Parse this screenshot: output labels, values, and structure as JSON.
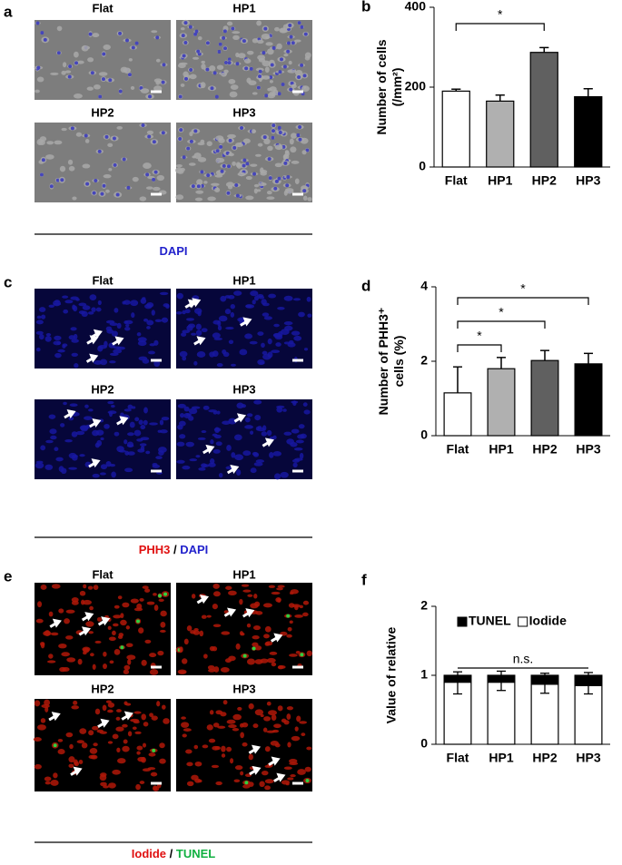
{
  "panels": [
    {
      "letter": "a",
      "labels": [
        "Flat",
        "HP1",
        "HP2",
        "HP3"
      ],
      "stain": [
        {
          "text": "DAPI",
          "color": "#2222cc"
        }
      ]
    },
    {
      "letter": "c",
      "labels": [
        "Flat",
        "HP1",
        "HP2",
        "HP3"
      ],
      "stain": [
        {
          "text": "PHH3",
          "color": "#e01010"
        },
        {
          "text": " / ",
          "color": "#000000"
        },
        {
          "text": "DAPI",
          "color": "#2222cc"
        }
      ]
    },
    {
      "letter": "e",
      "labels": [
        "Flat",
        "HP1",
        "HP2",
        "HP3"
      ],
      "stain": [
        {
          "text": "Iodide",
          "color": "#e01010"
        },
        {
          "text": " / ",
          "color": "#000000"
        },
        {
          "text": "TUNEL",
          "color": "#10b040"
        }
      ]
    }
  ],
  "chart_data": [
    {
      "type": "bar",
      "letter": "b",
      "ylabel": [
        "Number of cells",
        "(/mm²)"
      ],
      "categories": [
        "Flat",
        "HP1",
        "HP2",
        "HP3"
      ],
      "values": [
        190,
        165,
        287,
        176
      ],
      "errors": [
        5,
        15,
        12,
        20
      ],
      "colors": [
        "#ffffff",
        "#b0b0b0",
        "#606060",
        "#000000"
      ],
      "ylim": [
        0,
        400
      ],
      "yticks": [
        0,
        200,
        400
      ],
      "significance": [
        {
          "from": 0,
          "to": 2,
          "label": "*"
        }
      ]
    },
    {
      "type": "bar",
      "letter": "d",
      "ylabel": [
        "Number of PHH3⁺",
        "cells (%)"
      ],
      "categories": [
        "Flat",
        "HP1",
        "HP2",
        "HP3"
      ],
      "values": [
        1.15,
        1.8,
        2.02,
        1.93
      ],
      "errors": [
        0.7,
        0.3,
        0.27,
        0.28
      ],
      "colors": [
        "#ffffff",
        "#b0b0b0",
        "#606060",
        "#000000"
      ],
      "ylim": [
        0,
        4
      ],
      "yticks": [
        0,
        2,
        4
      ],
      "significance": [
        {
          "from": 0,
          "to": 1,
          "label": "*"
        },
        {
          "from": 0,
          "to": 2,
          "label": "*"
        },
        {
          "from": 0,
          "to": 3,
          "label": "*"
        }
      ]
    },
    {
      "type": "stacked_bar",
      "letter": "f",
      "ylabel": [
        "Value of relative"
      ],
      "categories": [
        "Flat",
        "HP1",
        "HP2",
        "HP3"
      ],
      "series": [
        {
          "name": "Iodide",
          "color": "#ffffff",
          "values": [
            0.9,
            0.9,
            0.87,
            0.85
          ],
          "errors": [
            0.17,
            0.12,
            0.13,
            0.12
          ]
        },
        {
          "name": "TUNEL",
          "color": "#000000",
          "values": [
            0.1,
            0.1,
            0.13,
            0.15
          ],
          "errors": [
            0.05,
            0.06,
            0.03,
            0.04
          ]
        }
      ],
      "legend": "top",
      "ylim": [
        0,
        2
      ],
      "yticks": [
        0,
        1,
        2
      ],
      "significance": [
        {
          "from": 0,
          "to": 3,
          "label": "n.s."
        }
      ]
    }
  ]
}
